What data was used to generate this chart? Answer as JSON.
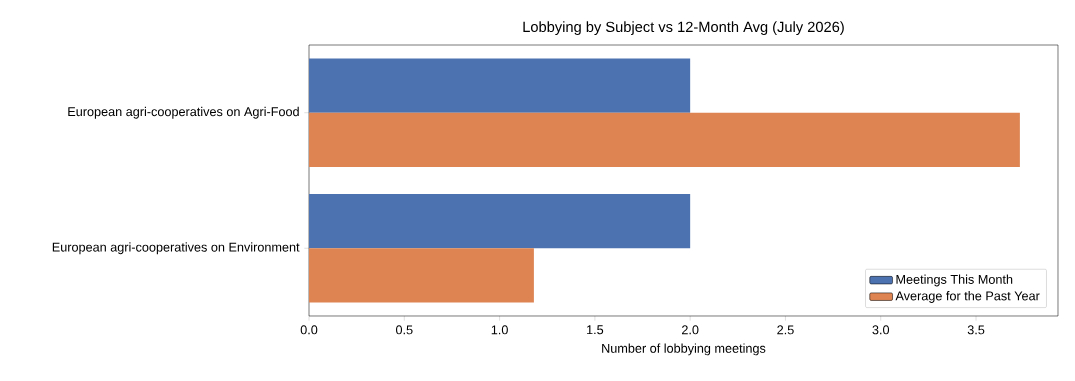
{
  "chart_data": {
    "type": "bar",
    "orientation": "horizontal",
    "title": "Lobbying by Subject vs 12-Month Avg (July 2026)",
    "xlabel": "Number of lobbying meetings",
    "categories": [
      "European agri-cooperatives on Agri-Food",
      "European agri-cooperatives on Environment"
    ],
    "series": [
      {
        "name": "Meetings This Month",
        "color": "#4c72b0",
        "values": [
          2,
          2
        ]
      },
      {
        "name": "Average for the Past Year",
        "color": "#dd8452",
        "values": [
          3.73,
          1.18
        ]
      }
    ],
    "xlim": [
      0,
      3.93
    ],
    "xticks": [
      {
        "value": 0,
        "label": "0.0"
      },
      {
        "value": 0.5,
        "label": "0.5"
      },
      {
        "value": 1,
        "label": "1.0"
      },
      {
        "value": 1.5,
        "label": "1.5"
      },
      {
        "value": 2,
        "label": "2.0"
      },
      {
        "value": 2.5,
        "label": "2.5"
      },
      {
        "value": 3,
        "label": "3.0"
      },
      {
        "value": 3.5,
        "label": "3.5"
      }
    ],
    "grid": false,
    "legend": "bottom right"
  }
}
